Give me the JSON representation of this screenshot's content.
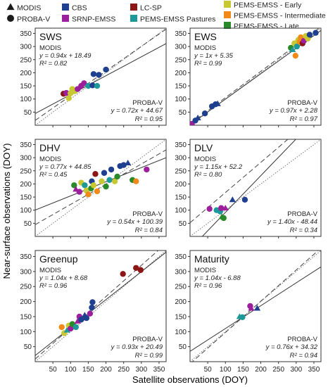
{
  "figure": {
    "xlabel": "Satellite observations (DOY)",
    "ylabel": "Near-surface observations (DOY)"
  },
  "legend": [
    {
      "label": "MODIS",
      "marker": "triangle",
      "color": "#1a1a1a"
    },
    {
      "label": "PROBA-V",
      "marker": "circle",
      "color": "#1a1a1a"
    },
    {
      "label": "CBS",
      "marker": "square",
      "color": "#1f3f8f"
    },
    {
      "label": "SRNP-EMSS",
      "marker": "square",
      "color": "#9c1f9c"
    },
    {
      "label": "LC-SP",
      "marker": "square",
      "color": "#8c1616"
    },
    {
      "label": "PEMS-EMSS Pastures",
      "marker": "square",
      "color": "#1e9999"
    },
    {
      "label": "PEMS-EMSS - Early",
      "marker": "square",
      "color": "#c8c832"
    },
    {
      "label": "PEMS-EMSS - Intermediate",
      "marker": "square",
      "color": "#f28a1a"
    },
    {
      "label": "PEMS-EMSS - Late",
      "marker": "square",
      "color": "#2a8a2a"
    }
  ],
  "colors": {
    "CBS": "#1f3f8f",
    "SRNP": "#9c1f9c",
    "LCSP": "#8c1616",
    "Pastures": "#1e9999",
    "Early": "#c8c832",
    "Intermediate": "#f28a1a",
    "Late": "#2a8a2a"
  },
  "chart_data": [
    {
      "type": "scatter",
      "title": "SWS",
      "xlim": [
        0,
        370
      ],
      "ylim": [
        0,
        370
      ],
      "xticks": [],
      "yticks": [
        50,
        100,
        150,
        200,
        250,
        300,
        350
      ],
      "modis": {
        "label": "MODIS",
        "eq": "y = 0.94x + 18.49",
        "r2": "R² = 0.82",
        "slope": 0.94,
        "intercept": 18.49
      },
      "proba": {
        "label": "PROBA-V",
        "eq": "y = 0.72x + 44.67",
        "r2": "R² = 0.95",
        "slope": 0.72,
        "intercept": 44.67
      },
      "points": [
        {
          "x": 80,
          "y": 120,
          "c": "LCSP",
          "m": "circle"
        },
        {
          "x": 88,
          "y": 123,
          "c": "SRNP",
          "m": "circle"
        },
        {
          "x": 95,
          "y": 103,
          "c": "Early",
          "m": "circle"
        },
        {
          "x": 100,
          "y": 122,
          "c": "Early",
          "m": "circle"
        },
        {
          "x": 105,
          "y": 138,
          "c": "Early",
          "m": "circle"
        },
        {
          "x": 112,
          "y": 130,
          "c": "Early",
          "m": "circle"
        },
        {
          "x": 120,
          "y": 138,
          "c": "SRNP",
          "m": "circle"
        },
        {
          "x": 130,
          "y": 150,
          "c": "SRNP",
          "m": "circle"
        },
        {
          "x": 138,
          "y": 160,
          "c": "SRNP",
          "m": "circle"
        },
        {
          "x": 150,
          "y": 150,
          "c": "Pastures",
          "m": "circle"
        },
        {
          "x": 162,
          "y": 152,
          "c": "CBS",
          "m": "circle"
        },
        {
          "x": 165,
          "y": 195,
          "c": "CBS",
          "m": "circle"
        },
        {
          "x": 175,
          "y": 150,
          "c": "Pastures",
          "m": "circle"
        },
        {
          "x": 180,
          "y": 192,
          "c": "CBS",
          "m": "circle"
        },
        {
          "x": 200,
          "y": 212,
          "c": "CBS",
          "m": "circle"
        }
      ]
    },
    {
      "type": "scatter",
      "title": "EWS",
      "xlim": [
        0,
        370
      ],
      "ylim": [
        0,
        370
      ],
      "xticks": [],
      "yticks": [
        50,
        100,
        150,
        200,
        250,
        300,
        350
      ],
      "modis": {
        "label": "MODIS",
        "eq": "y = 1x + 5.35",
        "r2": "R² = 0.99",
        "slope": 1.0,
        "intercept": 5.35
      },
      "proba": {
        "label": "PROBA-V",
        "eq": "y = 0.97x + 2.28",
        "r2": "R² = 0.97",
        "slope": 0.97,
        "intercept": 2.28
      },
      "points": [
        {
          "x": 5,
          "y": 5,
          "c": "SRNP",
          "m": "circle"
        },
        {
          "x": 15,
          "y": 18,
          "c": "CBS",
          "m": "circle"
        },
        {
          "x": 22,
          "y": 28,
          "c": "CBS",
          "m": "triangle"
        },
        {
          "x": 42,
          "y": 45,
          "c": "CBS",
          "m": "circle"
        },
        {
          "x": 62,
          "y": 72,
          "c": "CBS",
          "m": "circle"
        },
        {
          "x": 72,
          "y": 80,
          "c": "CBS",
          "m": "circle"
        },
        {
          "x": 78,
          "y": 82,
          "c": "CBS",
          "m": "triangle"
        },
        {
          "x": 285,
          "y": 295,
          "c": "Late",
          "m": "circle"
        },
        {
          "x": 290,
          "y": 288,
          "c": "Pastures",
          "m": "triangle"
        },
        {
          "x": 295,
          "y": 312,
          "c": "Early",
          "m": "circle"
        },
        {
          "x": 298,
          "y": 265,
          "c": "Intermediate",
          "m": "circle"
        },
        {
          "x": 302,
          "y": 300,
          "c": "Pastures",
          "m": "circle"
        },
        {
          "x": 306,
          "y": 325,
          "c": "Early",
          "m": "circle"
        },
        {
          "x": 310,
          "y": 318,
          "c": "Intermediate",
          "m": "circle"
        },
        {
          "x": 313,
          "y": 335,
          "c": "Intermediate",
          "m": "circle"
        },
        {
          "x": 318,
          "y": 312,
          "c": "LCSP",
          "m": "circle"
        },
        {
          "x": 322,
          "y": 322,
          "c": "SRNP",
          "m": "circle"
        },
        {
          "x": 327,
          "y": 340,
          "c": "Early",
          "m": "circle"
        },
        {
          "x": 333,
          "y": 330,
          "c": "Early",
          "m": "circle"
        },
        {
          "x": 338,
          "y": 345,
          "c": "CBS",
          "m": "circle"
        },
        {
          "x": 355,
          "y": 352,
          "c": "CBS",
          "m": "circle"
        }
      ]
    },
    {
      "type": "scatter",
      "title": "DHV",
      "xlim": [
        0,
        370
      ],
      "ylim": [
        0,
        370
      ],
      "xticks": [],
      "yticks": [
        50,
        100,
        150,
        200,
        250,
        300,
        350
      ],
      "modis": {
        "label": "MODIS",
        "eq": "y = 0.77x + 44.85",
        "r2": "R² = 0.45",
        "slope": 0.77,
        "intercept": 44.85
      },
      "proba": {
        "label": "PROBA-V",
        "eq": "y = 0.54x + 100.39",
        "r2": "R² = 0.84",
        "slope": 0.54,
        "intercept": 100.39
      },
      "points": [
        {
          "x": 110,
          "y": 195,
          "c": "Late",
          "m": "circle"
        },
        {
          "x": 115,
          "y": 180,
          "c": "SRNP",
          "m": "triangle"
        },
        {
          "x": 125,
          "y": 170,
          "c": "SRNP",
          "m": "circle"
        },
        {
          "x": 130,
          "y": 205,
          "c": "Early",
          "m": "circle"
        },
        {
          "x": 140,
          "y": 195,
          "c": "Pastures",
          "m": "circle"
        },
        {
          "x": 145,
          "y": 175,
          "c": "Early",
          "m": "circle"
        },
        {
          "x": 150,
          "y": 160,
          "c": "Intermediate",
          "m": "circle"
        },
        {
          "x": 158,
          "y": 183,
          "c": "Late",
          "m": "circle"
        },
        {
          "x": 160,
          "y": 210,
          "c": "CBS",
          "m": "circle"
        },
        {
          "x": 165,
          "y": 195,
          "c": "Early",
          "m": "circle"
        },
        {
          "x": 170,
          "y": 238,
          "c": "LCSP",
          "m": "circle"
        },
        {
          "x": 175,
          "y": 172,
          "c": "Intermediate",
          "m": "circle"
        },
        {
          "x": 188,
          "y": 210,
          "c": "Early",
          "m": "circle"
        },
        {
          "x": 195,
          "y": 242,
          "c": "CBS",
          "m": "circle"
        },
        {
          "x": 200,
          "y": 190,
          "c": "Late",
          "m": "circle"
        },
        {
          "x": 210,
          "y": 215,
          "c": "Pastures",
          "m": "circle"
        },
        {
          "x": 215,
          "y": 255,
          "c": "CBS",
          "m": "circle"
        },
        {
          "x": 225,
          "y": 210,
          "c": "Early",
          "m": "circle"
        },
        {
          "x": 232,
          "y": 228,
          "c": "Late",
          "m": "circle"
        },
        {
          "x": 240,
          "y": 268,
          "c": "CBS",
          "m": "circle"
        },
        {
          "x": 250,
          "y": 272,
          "c": "CBS",
          "m": "circle"
        },
        {
          "x": 262,
          "y": 280,
          "c": "CBS",
          "m": "triangle"
        },
        {
          "x": 275,
          "y": 215,
          "c": "Late",
          "m": "circle"
        },
        {
          "x": 285,
          "y": 210,
          "c": "Intermediate",
          "m": "circle"
        },
        {
          "x": 315,
          "y": 255,
          "c": "SRNP",
          "m": "circle"
        }
      ]
    },
    {
      "type": "scatter",
      "title": "DLV",
      "xlim": [
        0,
        370
      ],
      "ylim": [
        0,
        370
      ],
      "xticks": [],
      "yticks": [
        50,
        100,
        150,
        200,
        250,
        300,
        350
      ],
      "modis": {
        "label": "MODIS",
        "eq": "y = 1.15x + 52.2",
        "r2": "R² = 0.80",
        "slope": 1.15,
        "intercept": 52.2
      },
      "proba": {
        "label": "PROBA-V",
        "eq": "y = 1.40x - 48.44",
        "r2": "R² = 0.34",
        "slope": 1.4,
        "intercept": -48.44
      },
      "points": [
        {
          "x": 55,
          "y": 105,
          "c": "SRNP",
          "m": "circle"
        },
        {
          "x": 75,
          "y": 100,
          "c": "Pastures",
          "m": "circle"
        },
        {
          "x": 85,
          "y": 95,
          "c": "Pastures",
          "m": "circle"
        },
        {
          "x": 88,
          "y": 108,
          "c": "SRNP",
          "m": "circle"
        },
        {
          "x": 90,
          "y": 75,
          "c": "Late",
          "m": "triangle"
        },
        {
          "x": 95,
          "y": 70,
          "c": "Late",
          "m": "circle"
        },
        {
          "x": 100,
          "y": 108,
          "c": "SRNP",
          "m": "triangle"
        },
        {
          "x": 120,
          "y": 140,
          "c": "CBS",
          "m": "triangle"
        },
        {
          "x": 155,
          "y": 140,
          "c": "CBS",
          "m": "circle"
        }
      ]
    },
    {
      "type": "scatter",
      "title": "Greenup",
      "xlim": [
        0,
        370
      ],
      "ylim": [
        0,
        370
      ],
      "xticks": [
        50,
        100,
        150,
        200,
        250,
        300,
        350
      ],
      "yticks": [
        50,
        100,
        150,
        200,
        250,
        300,
        350
      ],
      "modis": {
        "label": "MODIS",
        "eq": "y = 1.04x + 8.68",
        "r2": "R² = 0.96",
        "slope": 1.04,
        "intercept": 8.68
      },
      "proba": {
        "label": "PROBA-V",
        "eq": "y = 0.93x + 20.49",
        "r2": "R² = 0.99",
        "slope": 0.93,
        "intercept": 20.49
      },
      "points": [
        {
          "x": 75,
          "y": 115,
          "c": "Intermediate",
          "m": "circle"
        },
        {
          "x": 82,
          "y": 95,
          "c": "Early",
          "m": "circle"
        },
        {
          "x": 90,
          "y": 105,
          "c": "Pastures",
          "m": "triangle"
        },
        {
          "x": 95,
          "y": 120,
          "c": "Early",
          "m": "circle"
        },
        {
          "x": 100,
          "y": 110,
          "c": "SRNP",
          "m": "circle"
        },
        {
          "x": 105,
          "y": 125,
          "c": "Late",
          "m": "circle"
        },
        {
          "x": 115,
          "y": 115,
          "c": "Pastures",
          "m": "circle"
        },
        {
          "x": 120,
          "y": 135,
          "c": "SRNP",
          "m": "triangle"
        },
        {
          "x": 125,
          "y": 150,
          "c": "SRNP",
          "m": "circle"
        },
        {
          "x": 130,
          "y": 140,
          "c": "CBS",
          "m": "circle"
        },
        {
          "x": 140,
          "y": 155,
          "c": "CBS",
          "m": "triangle"
        },
        {
          "x": 145,
          "y": 145,
          "c": "CBS",
          "m": "circle"
        },
        {
          "x": 155,
          "y": 160,
          "c": "SRNP",
          "m": "circle"
        },
        {
          "x": 160,
          "y": 180,
          "c": "CBS",
          "m": "circle"
        },
        {
          "x": 162,
          "y": 198,
          "c": "CBS",
          "m": "circle"
        },
        {
          "x": 248,
          "y": 292,
          "c": "LCSP",
          "m": "circle"
        },
        {
          "x": 285,
          "y": 312,
          "c": "LCSP",
          "m": "circle"
        },
        {
          "x": 298,
          "y": 305,
          "c": "LCSP",
          "m": "circle"
        }
      ]
    },
    {
      "type": "scatter",
      "title": "Maturity",
      "xlim": [
        0,
        370
      ],
      "ylim": [
        0,
        370
      ],
      "xticks": [
        50,
        100,
        150,
        200,
        250,
        300,
        350
      ],
      "yticks": [
        50,
        100,
        150,
        200,
        250,
        300,
        350
      ],
      "modis": {
        "label": "MODIS",
        "eq": "y = 1.04x - 6.88",
        "r2": "R² = 0.96",
        "slope": 1.04,
        "intercept": -6.88
      },
      "proba": {
        "label": "PROBA-V",
        "eq": "y = 0.76x + 34.32",
        "r2": "R² = 0.94",
        "slope": 0.76,
        "intercept": 34.32
      },
      "points": [
        {
          "x": 140,
          "y": 150,
          "c": "Pastures",
          "m": "triangle"
        },
        {
          "x": 148,
          "y": 148,
          "c": "Pastures",
          "m": "circle"
        },
        {
          "x": 170,
          "y": 185,
          "c": "SRNP",
          "m": "circle"
        },
        {
          "x": 173,
          "y": 178,
          "c": "SRNP",
          "m": "triangle"
        },
        {
          "x": 190,
          "y": 178,
          "c": "CBS",
          "m": "triangle"
        }
      ]
    }
  ]
}
